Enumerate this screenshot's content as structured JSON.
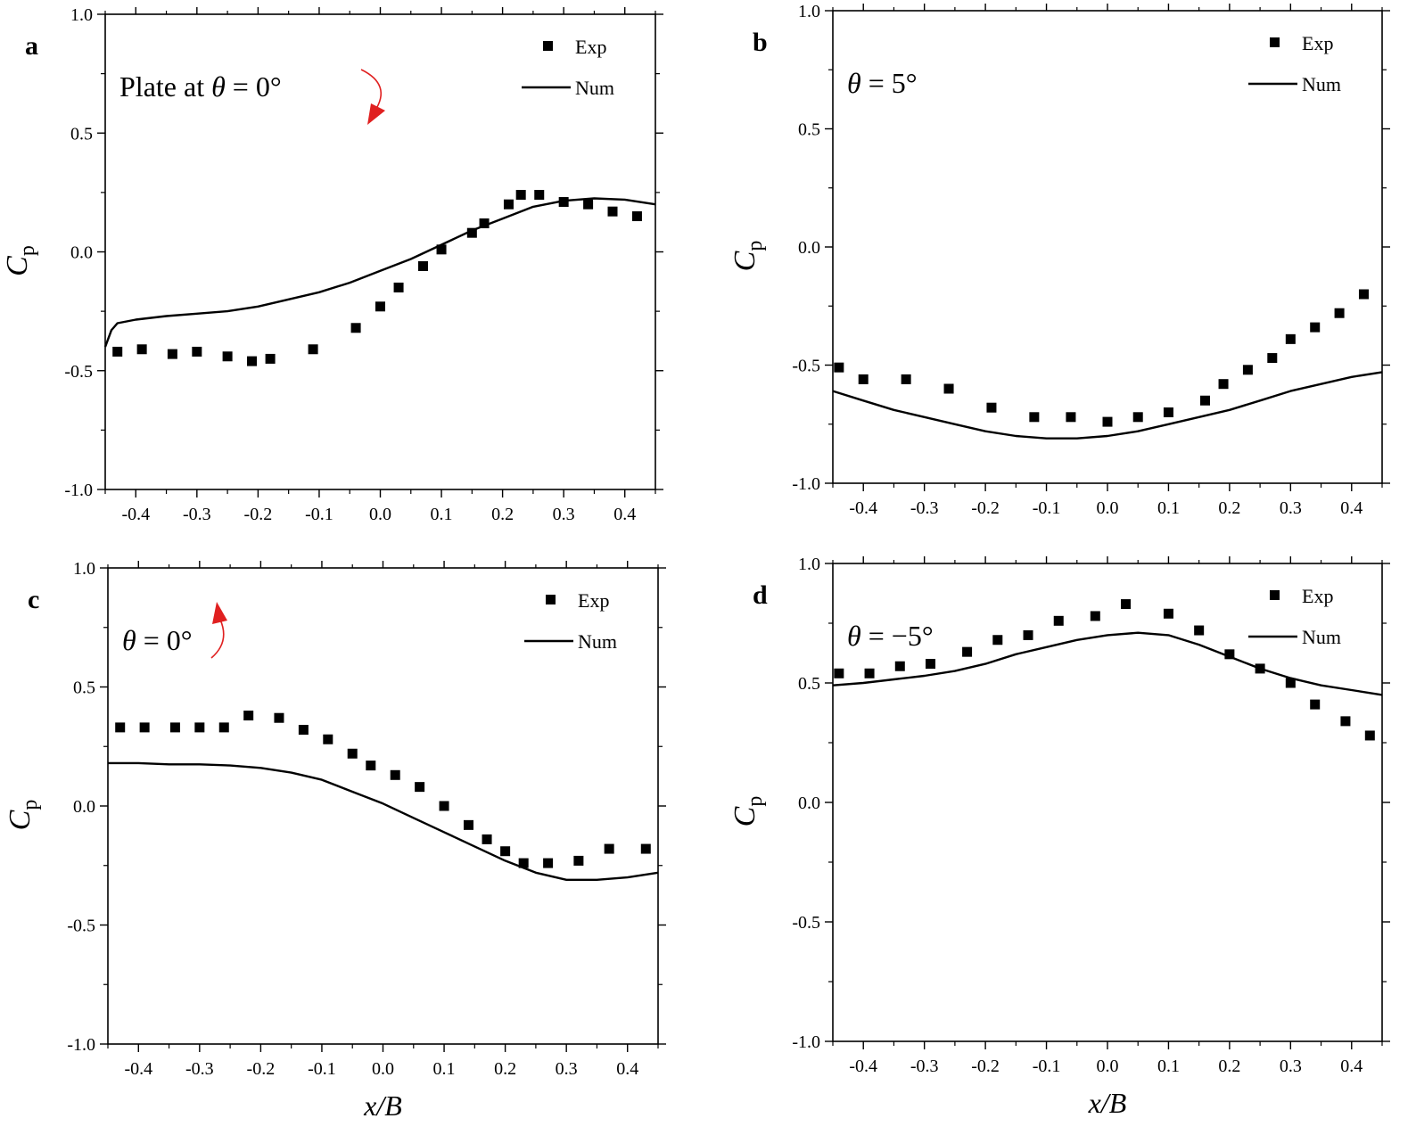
{
  "chart_data": [
    {
      "id": "a",
      "type": "line+scatter",
      "panel_label": "a",
      "annotation": {
        "prefix": "Plate at",
        "theta_symbol": "θ",
        "theta_value": " = 0°",
        "arrow": "clockwise"
      },
      "xlabel": "",
      "ylabel": {
        "main": "C",
        "sub": "p"
      },
      "xlim": [
        -0.45,
        0.45
      ],
      "ylim": [
        -1.0,
        1.0
      ],
      "xticks": [
        "-0.4",
        "-0.3",
        "-0.2",
        "-0.1",
        "0.0",
        "0.1",
        "0.2",
        "0.3",
        "0.4"
      ],
      "yticks": [
        "-1.0",
        "-0.5",
        "0.0",
        "0.5",
        "1.0"
      ],
      "legend": {
        "position": "top-right",
        "entries": [
          "Exp",
          "Num"
        ]
      },
      "series": [
        {
          "name": "Exp",
          "kind": "scatter",
          "x": [
            -0.43,
            -0.39,
            -0.34,
            -0.3,
            -0.25,
            -0.21,
            -0.18,
            -0.11,
            -0.04,
            0.0,
            0.03,
            0.07,
            0.1,
            0.15,
            0.17,
            0.21,
            0.23,
            0.26,
            0.3,
            0.34,
            0.38,
            0.42
          ],
          "y": [
            -0.42,
            -0.41,
            -0.43,
            -0.42,
            -0.44,
            -0.46,
            -0.45,
            -0.41,
            -0.32,
            -0.23,
            -0.15,
            -0.06,
            0.01,
            0.08,
            0.12,
            0.2,
            0.24,
            0.24,
            0.21,
            0.2,
            0.17,
            0.15
          ]
        },
        {
          "name": "Num",
          "kind": "line",
          "x": [
            -0.45,
            -0.44,
            -0.43,
            -0.4,
            -0.35,
            -0.3,
            -0.25,
            -0.2,
            -0.15,
            -0.1,
            -0.05,
            0.0,
            0.05,
            0.1,
            0.15,
            0.2,
            0.25,
            0.3,
            0.35,
            0.4,
            0.45
          ],
          "y": [
            -0.4,
            -0.33,
            -0.3,
            -0.285,
            -0.27,
            -0.26,
            -0.25,
            -0.23,
            -0.2,
            -0.17,
            -0.13,
            -0.08,
            -0.03,
            0.03,
            0.09,
            0.14,
            0.19,
            0.215,
            0.225,
            0.22,
            0.2
          ]
        }
      ]
    },
    {
      "id": "b",
      "type": "line+scatter",
      "panel_label": "b",
      "annotation": {
        "prefix": "",
        "theta_symbol": "θ",
        "theta_value": " = 5°",
        "arrow": "none"
      },
      "xlabel": "",
      "ylabel": {
        "main": "C",
        "sub": "p"
      },
      "xlim": [
        -0.45,
        0.45
      ],
      "ylim": [
        -1.0,
        1.0
      ],
      "xticks": [
        "-0.4",
        "-0.3",
        "-0.2",
        "-0.1",
        "0.0",
        "0.1",
        "0.2",
        "0.3",
        "0.4"
      ],
      "yticks": [
        "-1.0",
        "-0.5",
        "0.0",
        "0.5",
        "1.0"
      ],
      "legend": {
        "position": "top-right",
        "entries": [
          "Exp",
          "Num"
        ]
      },
      "series": [
        {
          "name": "Exp",
          "kind": "scatter",
          "x": [
            -0.44,
            -0.4,
            -0.33,
            -0.26,
            -0.19,
            -0.12,
            -0.06,
            0.0,
            0.05,
            0.1,
            0.16,
            0.19,
            0.23,
            0.27,
            0.3,
            0.34,
            0.38,
            0.42
          ],
          "y": [
            -0.51,
            -0.56,
            -0.56,
            -0.6,
            -0.68,
            -0.72,
            -0.72,
            -0.74,
            -0.72,
            -0.7,
            -0.65,
            -0.58,
            -0.52,
            -0.47,
            -0.39,
            -0.34,
            -0.28,
            -0.2
          ]
        },
        {
          "name": "Num",
          "kind": "line",
          "x": [
            -0.45,
            -0.4,
            -0.35,
            -0.3,
            -0.25,
            -0.2,
            -0.15,
            -0.1,
            -0.05,
            0.0,
            0.05,
            0.1,
            0.15,
            0.2,
            0.25,
            0.3,
            0.35,
            0.4,
            0.45
          ],
          "y": [
            -0.61,
            -0.65,
            -0.69,
            -0.72,
            -0.75,
            -0.78,
            -0.8,
            -0.81,
            -0.81,
            -0.8,
            -0.78,
            -0.75,
            -0.72,
            -0.69,
            -0.65,
            -0.61,
            -0.58,
            -0.55,
            -0.53
          ]
        }
      ]
    },
    {
      "id": "c",
      "type": "line+scatter",
      "panel_label": "c",
      "annotation": {
        "prefix": "",
        "theta_symbol": "θ",
        "theta_value": " = 0°",
        "arrow": "counterclockwise"
      },
      "xlabel": {
        "main": "x",
        "sep": "/",
        "main2": "B"
      },
      "ylabel": {
        "main": "C",
        "sub": "p"
      },
      "xlim": [
        -0.45,
        0.45
      ],
      "ylim": [
        -1.0,
        1.0
      ],
      "xticks": [
        "-0.4",
        "-0.3",
        "-0.2",
        "-0.1",
        "0.0",
        "0.1",
        "0.2",
        "0.3",
        "0.4"
      ],
      "yticks": [
        "-1.0",
        "-0.5",
        "0.0",
        "0.5",
        "1.0"
      ],
      "legend": {
        "position": "top-right",
        "entries": [
          "Exp",
          "Num"
        ]
      },
      "series": [
        {
          "name": "Exp",
          "kind": "scatter",
          "x": [
            -0.43,
            -0.39,
            -0.34,
            -0.3,
            -0.26,
            -0.22,
            -0.17,
            -0.13,
            -0.09,
            -0.05,
            -0.02,
            0.02,
            0.06,
            0.1,
            0.14,
            0.17,
            0.2,
            0.23,
            0.27,
            0.32,
            0.37,
            0.43
          ],
          "y": [
            0.33,
            0.33,
            0.33,
            0.33,
            0.33,
            0.38,
            0.37,
            0.32,
            0.28,
            0.22,
            0.17,
            0.13,
            0.08,
            0.0,
            -0.08,
            -0.14,
            -0.19,
            -0.24,
            -0.24,
            -0.23,
            -0.18,
            -0.18
          ]
        },
        {
          "name": "Num",
          "kind": "line",
          "x": [
            -0.45,
            -0.4,
            -0.35,
            -0.3,
            -0.25,
            -0.2,
            -0.15,
            -0.1,
            -0.05,
            0.0,
            0.05,
            0.1,
            0.15,
            0.2,
            0.25,
            0.3,
            0.35,
            0.4,
            0.45
          ],
          "y": [
            0.18,
            0.18,
            0.175,
            0.175,
            0.17,
            0.16,
            0.14,
            0.11,
            0.06,
            0.01,
            -0.05,
            -0.11,
            -0.17,
            -0.23,
            -0.28,
            -0.31,
            -0.31,
            -0.3,
            -0.28
          ]
        }
      ]
    },
    {
      "id": "d",
      "type": "line+scatter",
      "panel_label": "d",
      "annotation": {
        "prefix": "",
        "theta_symbol": "θ",
        "theta_value": " = −5°",
        "arrow": "none"
      },
      "xlabel": {
        "main": "x",
        "sep": "/",
        "main2": "B"
      },
      "ylabel": {
        "main": "C",
        "sub": "p"
      },
      "xlim": [
        -0.45,
        0.45
      ],
      "ylim": [
        -1.0,
        1.0
      ],
      "xticks": [
        "-0.4",
        "-0.3",
        "-0.2",
        "-0.1",
        "0.0",
        "0.1",
        "0.2",
        "0.3",
        "0.4"
      ],
      "yticks": [
        "-1.0",
        "-0.5",
        "0.0",
        "0.5",
        "1.0"
      ],
      "legend": {
        "position": "top-right",
        "entries": [
          "Exp",
          "Num"
        ]
      },
      "series": [
        {
          "name": "Exp",
          "kind": "scatter",
          "x": [
            -0.44,
            -0.39,
            -0.34,
            -0.29,
            -0.23,
            -0.18,
            -0.13,
            -0.08,
            -0.02,
            0.03,
            0.1,
            0.15,
            0.2,
            0.25,
            0.3,
            0.34,
            0.39,
            0.43
          ],
          "y": [
            0.54,
            0.54,
            0.57,
            0.58,
            0.63,
            0.68,
            0.7,
            0.76,
            0.78,
            0.83,
            0.79,
            0.72,
            0.62,
            0.56,
            0.5,
            0.41,
            0.34,
            0.28
          ]
        },
        {
          "name": "Num",
          "kind": "line",
          "x": [
            -0.45,
            -0.4,
            -0.35,
            -0.3,
            -0.25,
            -0.2,
            -0.15,
            -0.1,
            -0.05,
            0.0,
            0.05,
            0.1,
            0.15,
            0.2,
            0.25,
            0.3,
            0.35,
            0.4,
            0.45
          ],
          "y": [
            0.49,
            0.5,
            0.515,
            0.53,
            0.55,
            0.58,
            0.62,
            0.65,
            0.68,
            0.7,
            0.71,
            0.7,
            0.66,
            0.61,
            0.56,
            0.52,
            0.49,
            0.47,
            0.45
          ]
        }
      ]
    }
  ]
}
